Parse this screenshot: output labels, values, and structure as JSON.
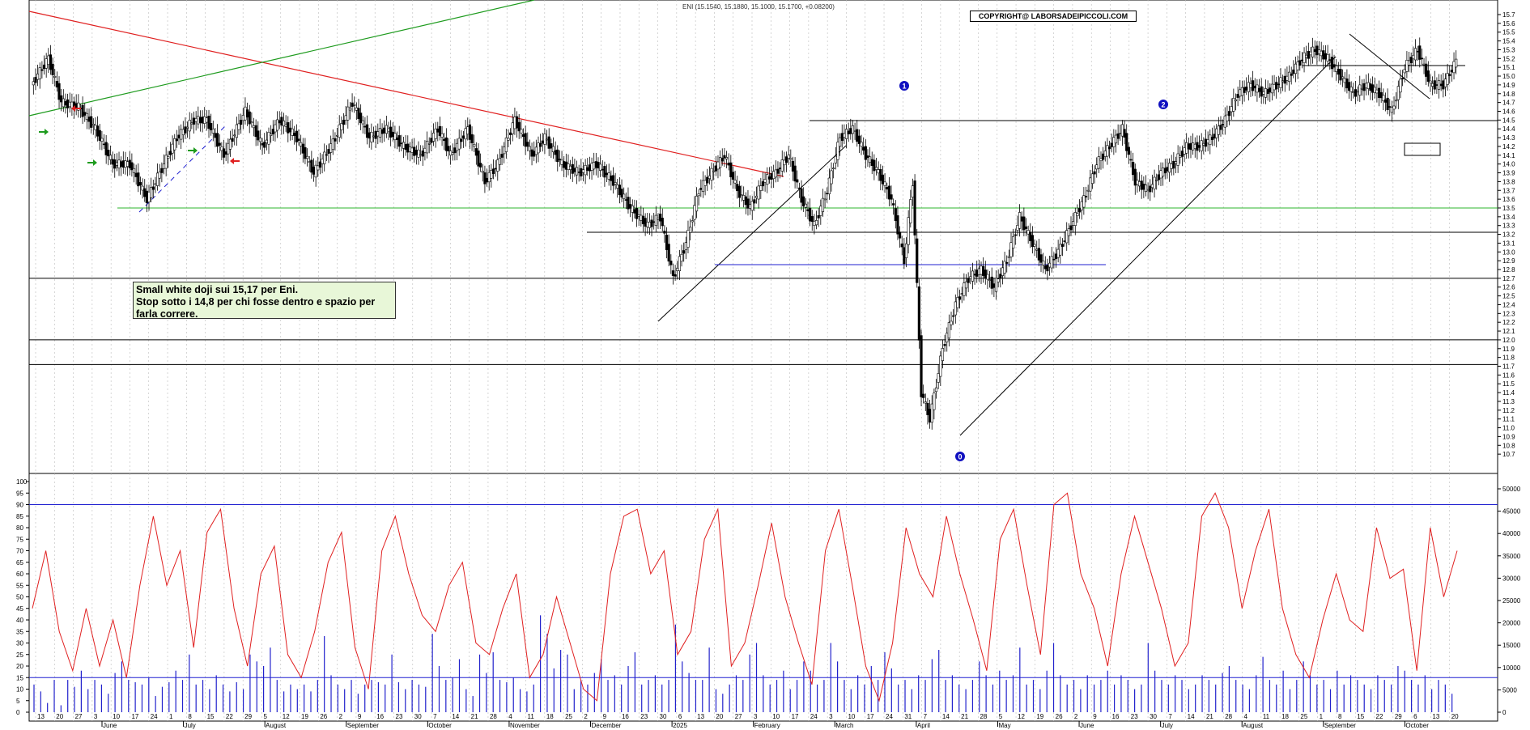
{
  "header": {
    "summary": "ENI (15.1540, 15.1880, 15.1000, 15.1700, +0.08200)",
    "copyright": "COPYRIGHT@ LABORSADEIPICCOLI.COM"
  },
  "note": {
    "line1": "Small white doji sui 15,17 per Eni.",
    "line2": "Stop sotto i 14,8 per chi fosse dentro e spazio per",
    "line3": "farla correre."
  },
  "colors": {
    "candle_up": "#ffffff",
    "candle_down": "#000000",
    "resistance_red": "#e02020",
    "trend_green": "#1e9b1e",
    "support_green": "#2cb52c",
    "blue_lines": "#1f1fd0",
    "oscillator_red": "#e02020",
    "volume_blue": "#2222cc",
    "badge_blue": "#1010c0"
  },
  "wave_labels": [
    "0",
    "1",
    "2"
  ],
  "chart_data": [
    {
      "type": "candlestick",
      "title": "ENI (15.1540, 15.1880, 15.1000, 15.1700, +0.08200)",
      "ylim": [
        10.6,
        15.7
      ],
      "yticks": [
        "15.7",
        "15.6",
        "15.5",
        "15.4",
        "15.3",
        "15.2",
        "15.1",
        "15.0",
        "14.9",
        "14.8",
        "14.7",
        "14.6",
        "14.5",
        "14.4",
        "14.3",
        "14.2",
        "14.1",
        "14.0",
        "13.9",
        "13.8",
        "13.7",
        "13.6",
        "13.5",
        "13.4",
        "13.3",
        "13.2",
        "13.1",
        "13.0",
        "12.9",
        "12.8",
        "12.7",
        "12.6",
        "12.5",
        "12.4",
        "12.3",
        "12.2",
        "12.1",
        "12.0",
        "11.9",
        "11.8",
        "11.7",
        "11.6",
        "11.5",
        "11.4",
        "11.3",
        "11.2",
        "11.1",
        "11.0",
        "10.9",
        "10.8",
        "10.7"
      ],
      "horizontal_levels": [
        14.5,
        13.5,
        13.25,
        12.7,
        12.0,
        11.72,
        15.1
      ],
      "price_path": [
        [
          0,
          14.9
        ],
        [
          8,
          15.2
        ],
        [
          14,
          14.7
        ],
        [
          22,
          14.65
        ],
        [
          30,
          14.4
        ],
        [
          38,
          14.0
        ],
        [
          46,
          14.0
        ],
        [
          54,
          13.6
        ],
        [
          60,
          13.9
        ],
        [
          68,
          14.3
        ],
        [
          76,
          14.5
        ],
        [
          82,
          14.5
        ],
        [
          90,
          14.1
        ],
        [
          100,
          14.6
        ],
        [
          108,
          14.2
        ],
        [
          116,
          14.5
        ],
        [
          124,
          14.3
        ],
        [
          132,
          13.9
        ],
        [
          140,
          14.2
        ],
        [
          150,
          14.7
        ],
        [
          158,
          14.3
        ],
        [
          166,
          14.4
        ],
        [
          174,
          14.2
        ],
        [
          182,
          14.1
        ],
        [
          190,
          14.4
        ],
        [
          196,
          14.1
        ],
        [
          204,
          14.4
        ],
        [
          212,
          13.8
        ],
        [
          218,
          14.0
        ],
        [
          226,
          14.5
        ],
        [
          234,
          14.1
        ],
        [
          240,
          14.3
        ],
        [
          248,
          14.0
        ],
        [
          256,
          13.9
        ],
        [
          264,
          14.0
        ],
        [
          272,
          13.8
        ],
        [
          280,
          13.5
        ],
        [
          288,
          13.3
        ],
        [
          294,
          13.4
        ],
        [
          300,
          12.7
        ],
        [
          306,
          13.1
        ],
        [
          312,
          13.7
        ],
        [
          318,
          13.9
        ],
        [
          324,
          14.1
        ],
        [
          330,
          13.7
        ],
        [
          336,
          13.5
        ],
        [
          342,
          13.8
        ],
        [
          348,
          13.9
        ],
        [
          354,
          14.1
        ],
        [
          360,
          13.6
        ],
        [
          366,
          13.3
        ],
        [
          372,
          13.7
        ],
        [
          378,
          14.3
        ],
        [
          384,
          14.4
        ],
        [
          390,
          14.1
        ],
        [
          396,
          13.9
        ],
        [
          402,
          13.6
        ],
        [
          408,
          12.9
        ],
        [
          412,
          13.8
        ],
        [
          416,
          11.4
        ],
        [
          420,
          11.1
        ],
        [
          426,
          11.9
        ],
        [
          432,
          12.4
        ],
        [
          438,
          12.7
        ],
        [
          444,
          12.8
        ],
        [
          450,
          12.6
        ],
        [
          456,
          12.9
        ],
        [
          462,
          13.4
        ],
        [
          468,
          13.1
        ],
        [
          474,
          12.8
        ],
        [
          480,
          13.0
        ],
        [
          486,
          13.3
        ],
        [
          492,
          13.6
        ],
        [
          498,
          14.0
        ],
        [
          504,
          14.2
        ],
        [
          510,
          14.4
        ],
        [
          516,
          13.8
        ],
        [
          522,
          13.7
        ],
        [
          528,
          13.9
        ],
        [
          534,
          14.0
        ],
        [
          540,
          14.2
        ],
        [
          546,
          14.2
        ],
        [
          552,
          14.3
        ],
        [
          558,
          14.5
        ],
        [
          564,
          14.8
        ],
        [
          570,
          14.9
        ],
        [
          576,
          14.8
        ],
        [
          582,
          14.9
        ],
        [
          588,
          15.0
        ],
        [
          594,
          15.2
        ],
        [
          600,
          15.3
        ],
        [
          606,
          15.2
        ],
        [
          612,
          15.0
        ],
        [
          618,
          14.8
        ],
        [
          624,
          14.9
        ],
        [
          630,
          14.8
        ],
        [
          636,
          14.6
        ],
        [
          642,
          15.1
        ],
        [
          648,
          15.3
        ],
        [
          654,
          14.9
        ],
        [
          660,
          14.9
        ],
        [
          666,
          15.17
        ]
      ]
    },
    {
      "type": "line+bar",
      "ylim": [
        0,
        100
      ],
      "yticks": [
        "100",
        "95",
        "90",
        "85",
        "80",
        "75",
        "70",
        "65",
        "60",
        "55",
        "50",
        "45",
        "40",
        "35",
        "30",
        "25",
        "20",
        "15",
        "10",
        "5",
        "0"
      ],
      "volume_ticks": [
        "50000",
        "45000",
        "40000",
        "35000",
        "30000",
        "25000",
        "20000",
        "15000",
        "10000",
        "5000",
        "0"
      ],
      "levels": [
        90,
        15
      ],
      "oscillator": [
        [
          0,
          45
        ],
        [
          6,
          70
        ],
        [
          12,
          35
        ],
        [
          18,
          18
        ],
        [
          24,
          45
        ],
        [
          30,
          20
        ],
        [
          36,
          40
        ],
        [
          42,
          15
        ],
        [
          48,
          55
        ],
        [
          54,
          85
        ],
        [
          60,
          55
        ],
        [
          66,
          70
        ],
        [
          72,
          28
        ],
        [
          78,
          78
        ],
        [
          84,
          88
        ],
        [
          90,
          45
        ],
        [
          96,
          20
        ],
        [
          102,
          60
        ],
        [
          108,
          72
        ],
        [
          114,
          25
        ],
        [
          120,
          15
        ],
        [
          126,
          35
        ],
        [
          132,
          65
        ],
        [
          138,
          78
        ],
        [
          144,
          28
        ],
        [
          150,
          10
        ],
        [
          156,
          70
        ],
        [
          162,
          85
        ],
        [
          168,
          60
        ],
        [
          174,
          42
        ],
        [
          180,
          35
        ],
        [
          186,
          55
        ],
        [
          192,
          65
        ],
        [
          198,
          30
        ],
        [
          204,
          25
        ],
        [
          210,
          45
        ],
        [
          216,
          60
        ],
        [
          222,
          15
        ],
        [
          228,
          25
        ],
        [
          234,
          50
        ],
        [
          240,
          30
        ],
        [
          246,
          10
        ],
        [
          252,
          5
        ],
        [
          258,
          60
        ],
        [
          264,
          85
        ],
        [
          270,
          88
        ],
        [
          276,
          60
        ],
        [
          282,
          70
        ],
        [
          288,
          25
        ],
        [
          294,
          35
        ],
        [
          300,
          75
        ],
        [
          306,
          88
        ],
        [
          312,
          20
        ],
        [
          318,
          30
        ],
        [
          324,
          55
        ],
        [
          330,
          82
        ],
        [
          336,
          50
        ],
        [
          342,
          30
        ],
        [
          348,
          12
        ],
        [
          354,
          70
        ],
        [
          360,
          88
        ],
        [
          366,
          55
        ],
        [
          372,
          20
        ],
        [
          378,
          5
        ],
        [
          384,
          30
        ],
        [
          390,
          80
        ],
        [
          396,
          60
        ],
        [
          402,
          50
        ],
        [
          408,
          85
        ],
        [
          414,
          60
        ],
        [
          420,
          40
        ],
        [
          426,
          18
        ],
        [
          432,
          75
        ],
        [
          438,
          88
        ],
        [
          444,
          55
        ],
        [
          450,
          25
        ],
        [
          456,
          90
        ],
        [
          462,
          95
        ],
        [
          468,
          60
        ],
        [
          474,
          45
        ],
        [
          480,
          20
        ],
        [
          486,
          60
        ],
        [
          492,
          85
        ],
        [
          498,
          65
        ],
        [
          504,
          45
        ],
        [
          510,
          20
        ],
        [
          516,
          30
        ],
        [
          522,
          85
        ],
        [
          528,
          95
        ],
        [
          534,
          80
        ],
        [
          540,
          45
        ],
        [
          546,
          70
        ],
        [
          552,
          88
        ],
        [
          558,
          45
        ],
        [
          564,
          25
        ],
        [
          570,
          15
        ],
        [
          576,
          40
        ],
        [
          582,
          60
        ],
        [
          588,
          40
        ],
        [
          594,
          35
        ],
        [
          600,
          80
        ],
        [
          606,
          58
        ],
        [
          612,
          62
        ],
        [
          618,
          18
        ],
        [
          624,
          80
        ],
        [
          630,
          50
        ],
        [
          636,
          70
        ]
      ],
      "volume": [
        12,
        9,
        4,
        14,
        3,
        14,
        11,
        18,
        10,
        14,
        12,
        8,
        17,
        22,
        14,
        13,
        12,
        15,
        7,
        11,
        13,
        18,
        14,
        25,
        12,
        14,
        10,
        16,
        12,
        9,
        13,
        10,
        25,
        22,
        20,
        28,
        14,
        9,
        12,
        10,
        12,
        9,
        14,
        33,
        16,
        12,
        10,
        14,
        8,
        12,
        14,
        13,
        12,
        25,
        13,
        10,
        14,
        12,
        11,
        34,
        20,
        14,
        15,
        23,
        10,
        7,
        25,
        17,
        26,
        14,
        13,
        15,
        10,
        9,
        12,
        42,
        34,
        19,
        27,
        25,
        10,
        14,
        12,
        17,
        23,
        14,
        16,
        12,
        20,
        26,
        12,
        14,
        16,
        12,
        14,
        38,
        22,
        17,
        14,
        14,
        28,
        10,
        8,
        12,
        16,
        14,
        25,
        30,
        16,
        12,
        14,
        18,
        10,
        14,
        22,
        18,
        12,
        14,
        30,
        22,
        14,
        10,
        16,
        12,
        20,
        14,
        26,
        19,
        12,
        14,
        10,
        16,
        14,
        23,
        27,
        14,
        16,
        12,
        10,
        14,
        22,
        16,
        12,
        18,
        14,
        16,
        28,
        12,
        14,
        10,
        18,
        30,
        16,
        12,
        14,
        10,
        16,
        12,
        14,
        18,
        12,
        16,
        14,
        10,
        12,
        30,
        18,
        14,
        12,
        16,
        14,
        10,
        12,
        16,
        14,
        12,
        17,
        20,
        14,
        12,
        10,
        16,
        24,
        14,
        12,
        18,
        10,
        14,
        22,
        16,
        12,
        14,
        10,
        18,
        12,
        16,
        14,
        12,
        10,
        16,
        14,
        12,
        20,
        18,
        14,
        12,
        16,
        10,
        14,
        12,
        8
      ]
    }
  ],
  "x_axis": {
    "months": [
      "June",
      "July",
      "August",
      "September",
      "October",
      "November",
      "December",
      "2025",
      "February",
      "March",
      "April",
      "May",
      "June",
      "July",
      "August",
      "September",
      "October"
    ],
    "days": [
      "13",
      "20",
      "27",
      "3",
      "10",
      "17",
      "24",
      "1",
      "8",
      "15",
      "22",
      "29",
      "5",
      "12",
      "19",
      "26",
      "2",
      "9",
      "16",
      "23",
      "30",
      "7",
      "14",
      "21",
      "28",
      "4",
      "11",
      "18",
      "25",
      "2",
      "9",
      "16",
      "23",
      "30",
      "6",
      "13",
      "20",
      "27",
      "3",
      "10",
      "17",
      "24",
      "3",
      "10",
      "17",
      "24",
      "31",
      "7",
      "14",
      "21",
      "28",
      "5",
      "12",
      "19",
      "26",
      "2",
      "9",
      "16",
      "23",
      "30",
      "7",
      "14",
      "21",
      "28",
      "4",
      "11",
      "18",
      "25",
      "1",
      "8",
      "15",
      "22",
      "29",
      "6",
      "13",
      "20"
    ]
  }
}
